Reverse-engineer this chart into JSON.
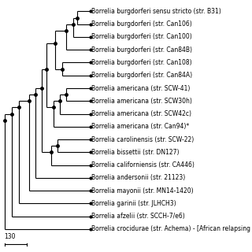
{
  "title": "",
  "background_color": "#ffffff",
  "scale_bar_label": "130",
  "taxa": [
    "Borrelia burgdorferi sensu stricto (str. B31)",
    "Borrelia burgdorferi (str. Can106)",
    "Borrelia burgdorferi (str. Can100)",
    "Borrelia burgdorferi (str. Can84B)",
    "Borrelia burgdorferi (str. Can108)",
    "Borrelia burgdorferi (str. Can84A)",
    "Borrelia americana (str. SCW-41)",
    "Borrelia americana (str. SCW30h)",
    "Borrelia americana (str. SCW42c)",
    "Borrelia americana (str. Can94)*",
    "Borrelia carolinensis (str. SCW-22)",
    "Borrelia bissettii (str. DN127)",
    "Borrelia californiensis (str. CA446)",
    "Borrelia andersonii (str. 21123)",
    "Borrelia mayonii (str. MN14-1420)",
    "Borrelia garinii (str. JLHCH3)",
    "Borrelia afzelii (str. SCCH-7/e6)",
    "Borrelia crocidurae (str. Achema) - [African relapsing fever]"
  ],
  "tree_color": "#000000",
  "dot_color": "#000000",
  "font_size": 5.5,
  "label_font": "DejaVu Sans"
}
